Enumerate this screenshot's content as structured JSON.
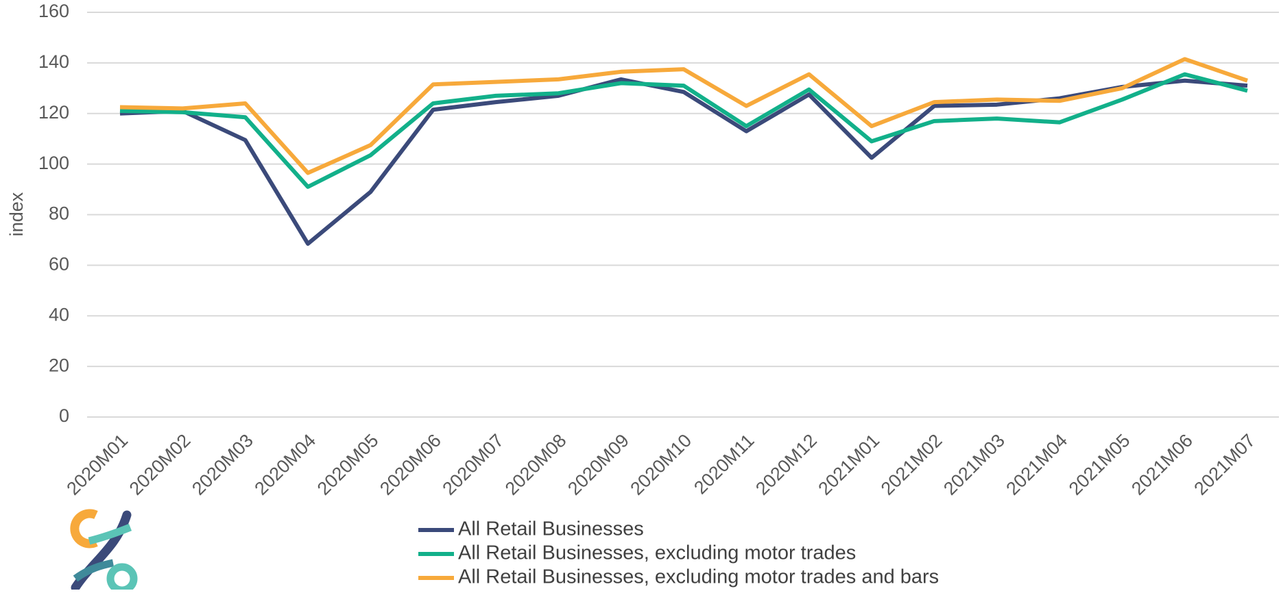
{
  "chart_data": {
    "type": "line",
    "y_label": "index",
    "categories": [
      "2020M01",
      "2020M02",
      "2020M03",
      "2020M04",
      "2020M05",
      "2020M06",
      "2020M07",
      "2020M08",
      "2020M09",
      "2020M10",
      "2020M11",
      "2020M12",
      "2021M01",
      "2021M02",
      "2021M03",
      "2021M04",
      "2021M05",
      "2021M06",
      "2021M07"
    ],
    "series": [
      {
        "name": "All Retail Businesses",
        "color": "#3b4a7a",
        "values": [
          120,
          121,
          109.5,
          68.5,
          89,
          121.5,
          124.5,
          127,
          133.5,
          128.5,
          113,
          127.5,
          102.5,
          123,
          123.5,
          126,
          130.5,
          133,
          131
        ]
      },
      {
        "name": "All Retail Businesses, excluding motor trades",
        "color": "#12b08a",
        "values": [
          121,
          120.5,
          118.5,
          91,
          103.5,
          124,
          127,
          128,
          132,
          131,
          115,
          129.5,
          109,
          117,
          118,
          116.5,
          125.5,
          135.5,
          129
        ]
      },
      {
        "name": "All Retail Businesses, excluding motor trades and bars",
        "color": "#f7a93b",
        "values": [
          122.5,
          122,
          124,
          96.5,
          107.5,
          131.5,
          132.5,
          133.5,
          136.5,
          137.5,
          123,
          135.5,
          115,
          124.5,
          125.5,
          125,
          130,
          141.5,
          133
        ]
      }
    ],
    "ylim": [
      0,
      160
    ],
    "yticks": [
      0,
      20,
      40,
      60,
      80,
      100,
      120,
      140,
      160
    ],
    "grid": true,
    "legend": "bottom"
  }
}
